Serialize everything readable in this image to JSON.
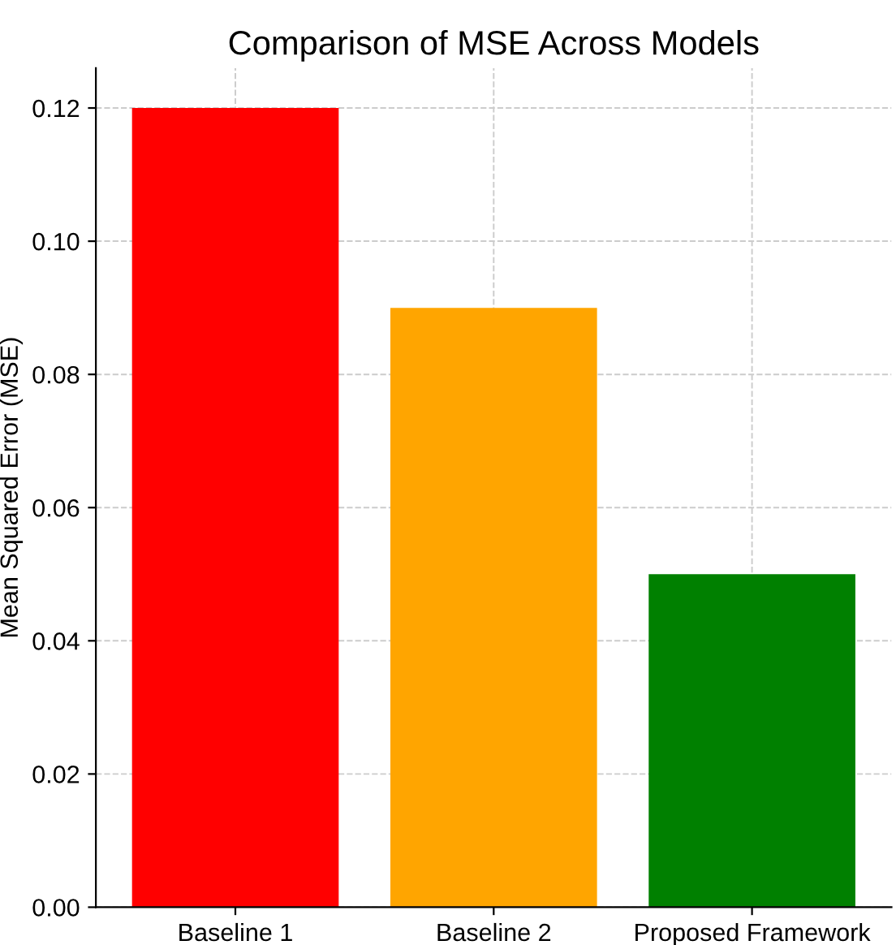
{
  "chart_data": {
    "type": "bar",
    "title": "Comparison of MSE Across Models",
    "ylabel": "Mean Squared Error (MSE)",
    "categories": [
      "Baseline 1",
      "Baseline 2",
      "Proposed Framework"
    ],
    "values": [
      0.12,
      0.09,
      0.05
    ],
    "colors": [
      "#ff0000",
      "#ffa500",
      "#008000"
    ],
    "ylim": [
      0,
      0.126
    ],
    "yticks": [
      {
        "value": 0,
        "label": "0.00"
      },
      {
        "value": 0.02,
        "label": "0.02"
      },
      {
        "value": 0.04,
        "label": "0.04"
      },
      {
        "value": 0.06,
        "label": "0.06"
      },
      {
        "value": 0.08,
        "label": "0.08"
      },
      {
        "value": 0.1,
        "label": "0.10"
      },
      {
        "value": 0.12,
        "label": "0.12"
      }
    ],
    "grid": true
  }
}
